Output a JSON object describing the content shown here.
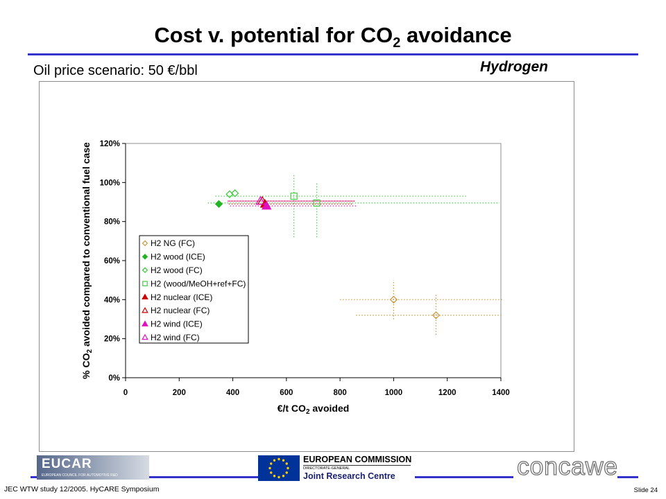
{
  "slide": {
    "title": {
      "pre": "Cost v. potential for CO",
      "sub": "2",
      "post": " avoidance"
    },
    "scenario": "Oil price scenario: 50 €/bbl",
    "category": "Hydrogen",
    "footer_left": "JEC WTW study 12/2005. HyCARE Symposium",
    "footer_right": "Slide 24",
    "accent_color": "#3333CC"
  },
  "logos": {
    "eucar": {
      "name": "EUCAR",
      "tagline": "EUROPEAN COUNCIL FOR AUTOMOTIVE R&D"
    },
    "jrc": {
      "org": "EUROPEAN COMMISSION",
      "unit": "DIRECTORATE-GENERAL",
      "name": "Joint Research Centre"
    },
    "concawe": {
      "name": "concawe"
    }
  },
  "chart_data": {
    "type": "scatter",
    "xlabel": {
      "pre": "€/t CO",
      "sub": "2",
      "post": " avoided"
    },
    "ylabel": {
      "pre": "% CO",
      "sub": "2",
      "post": " avoided compared to conventional fuel case"
    },
    "xlim": [
      0,
      1400
    ],
    "ylim": [
      0,
      120
    ],
    "xticks": [
      0,
      200,
      400,
      600,
      800,
      1000,
      1200,
      1400
    ],
    "xtick_labels": [
      "0",
      "200",
      "400",
      "600",
      "800",
      "1000",
      "1200",
      "1400"
    ],
    "yticks": [
      0,
      20,
      40,
      60,
      80,
      100,
      120
    ],
    "ytick_labels": [
      "0%",
      "20%",
      "40%",
      "60%",
      "80%",
      "100%",
      "120%"
    ],
    "grid": false,
    "legend_position": "center-left",
    "series": [
      {
        "name": "H2 NG (FC)",
        "marker": "diamond",
        "filled": false,
        "color": "#C8963C",
        "points": [
          {
            "x": 1000,
            "y": 40,
            "xerr": [
              800,
              1410
            ],
            "yerr": [
              30,
              50
            ]
          },
          {
            "x": 1158,
            "y": 32,
            "xerr": [
              860,
              1405
            ],
            "yerr": [
              22,
              43
            ]
          }
        ]
      },
      {
        "name": "H2 wood (ICE)",
        "marker": "diamond",
        "filled": true,
        "color": "#22B422",
        "points": [
          {
            "x": 348,
            "y": 89
          }
        ]
      },
      {
        "name": "H2 wood (FC)",
        "marker": "diamond",
        "filled": false,
        "color": "#33CC33",
        "points": [
          {
            "x": 388,
            "y": 94
          },
          {
            "x": 408,
            "y": 94.5
          }
        ]
      },
      {
        "name": "H2 (wood/MeOH+ref+FC)",
        "marker": "square",
        "filled": false,
        "color": "#44CC44",
        "points": [
          {
            "x": 628,
            "y": 93,
            "xerr": [
              335,
              1275
            ],
            "yerr": [
              72,
              104
            ]
          },
          {
            "x": 713,
            "y": 89.5,
            "xerr": [
              307,
              1395
            ],
            "yerr": [
              72,
              100
            ]
          }
        ]
      },
      {
        "name": "H2 nuclear (ICE)",
        "marker": "triangle",
        "filled": true,
        "color": "#CC0000",
        "points": [
          {
            "x": 520,
            "y": 89,
            "xerr": [
              385,
              850
            ]
          }
        ]
      },
      {
        "name": "H2 nuclear (FC)",
        "marker": "triangle",
        "filled": false,
        "color": "#CC0000",
        "points": [
          {
            "x": 510,
            "y": 90.5,
            "xerr": [
              385,
              855
            ]
          }
        ]
      },
      {
        "name": "H2 wind (ICE)",
        "marker": "triangle",
        "filled": true,
        "color": "#E010C0",
        "points": [
          {
            "x": 526,
            "y": 88,
            "xerr": [
              390,
              860
            ]
          }
        ]
      },
      {
        "name": "H2 wind (FC)",
        "marker": "triangle",
        "filled": false,
        "color": "#E010C0",
        "points": [
          {
            "x": 503,
            "y": 90.5,
            "xerr": [
              380,
              850
            ]
          }
        ]
      }
    ]
  }
}
